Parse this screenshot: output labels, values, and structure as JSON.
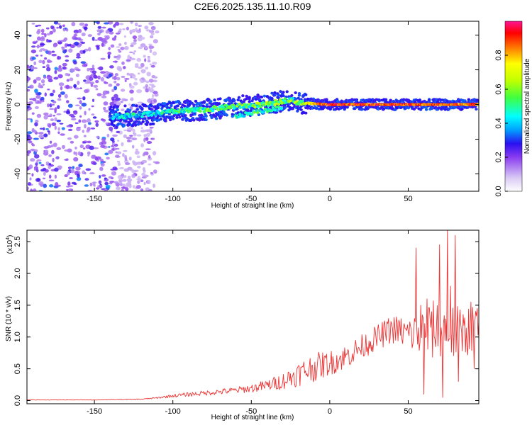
{
  "title": "C2E6.2025.135.11.10.R09",
  "chart_data": [
    {
      "type": "heatmap",
      "xlabel": "Height of straight line (km)",
      "ylabel": "Frequency (Hz)",
      "xlim": [
        -193,
        95
      ],
      "ylim": [
        -50,
        48
      ],
      "xticks": [
        -150,
        -100,
        -50,
        0,
        50
      ],
      "yticks": [
        -40,
        -20,
        0,
        20,
        40
      ],
      "colorbar": {
        "label": "Normalized spectral amplitude",
        "range": [
          0.0,
          1.0
        ],
        "ticks": [
          "0.0",
          "0.2",
          "0.4",
          "0.6",
          "0.8"
        ],
        "colors": [
          "#ffffff",
          "#d8c8f4",
          "#8a3cf0",
          "#2a10f0",
          "#00a0ff",
          "#00ffff",
          "#40ff40",
          "#c0ff00",
          "#ffff00",
          "#ff8000",
          "#ff0000",
          "#ff1493"
        ]
      },
      "ridge": [
        {
          "x": -140,
          "freq": -7,
          "amp": 0.45
        },
        {
          "x": -120,
          "freq": -6,
          "amp": 0.5
        },
        {
          "x": -100,
          "freq": -4,
          "amp": 0.55
        },
        {
          "x": -80,
          "freq": -3,
          "amp": 0.6
        },
        {
          "x": -60,
          "freq": -1,
          "amp": 0.6
        },
        {
          "x": -40,
          "freq": 0,
          "amp": 0.65
        },
        {
          "x": -25,
          "freq": 3,
          "amp": 0.6
        },
        {
          "x": -20,
          "freq": 1,
          "amp": 0.7
        },
        {
          "x": 0,
          "freq": 0,
          "amp": 0.95
        },
        {
          "x": 30,
          "freq": 0,
          "amp": 0.95
        },
        {
          "x": 60,
          "freq": 0,
          "amp": 0.9
        },
        {
          "x": 90,
          "freq": 0,
          "amp": 0.9
        }
      ],
      "secondary_ridge": [
        {
          "x": -60,
          "freq": -7,
          "amp": 0.5
        },
        {
          "x": -45,
          "freq": -4,
          "amp": 0.55
        },
        {
          "x": -30,
          "freq": -2,
          "amp": 0.55
        }
      ],
      "noise_region": {
        "x": [
          -193,
          -120
        ],
        "freq": [
          -50,
          48
        ],
        "amp": 0.25
      }
    },
    {
      "type": "line",
      "xlabel": "Height of straight line (km)",
      "ylabel": "SNR (10 * v/v)",
      "y_multiplier": "(x10",
      "y_multiplier_exp": "4",
      "color": "#ee3333",
      "xlim": [
        -193,
        95
      ],
      "ylim": [
        -0.05,
        2.68
      ],
      "xticks": [
        -150,
        -100,
        -50,
        0,
        50
      ],
      "yticks": [
        "0.0",
        "0.5",
        "1.0",
        "1.5",
        "2.0",
        "2.5"
      ],
      "x": [
        -193,
        -150,
        -120,
        -110,
        -100,
        -90,
        -80,
        -70,
        -60,
        -50,
        -40,
        -30,
        -20,
        -10,
        0,
        10,
        20,
        30,
        40,
        50,
        60,
        70,
        80,
        90,
        95
      ],
      "y": [
        0.01,
        0.01,
        0.02,
        0.04,
        0.07,
        0.09,
        0.11,
        0.13,
        0.15,
        0.18,
        0.22,
        0.28,
        0.38,
        0.48,
        0.55,
        0.65,
        0.8,
        0.95,
        1.08,
        1.0,
        0.95,
        1.05,
        0.95,
        1.05,
        1.1
      ],
      "noise_amplitude": [
        0.005,
        0.005,
        0.01,
        0.02,
        0.04,
        0.05,
        0.06,
        0.07,
        0.08,
        0.1,
        0.14,
        0.2,
        0.3,
        0.35,
        0.3,
        0.3,
        0.3,
        0.3,
        0.35,
        0.4,
        0.7,
        0.75,
        0.7,
        0.6,
        0.6
      ],
      "spikes": [
        {
          "x": 55,
          "y": 2.4
        },
        {
          "x": 58,
          "y": 1.5
        },
        {
          "x": 60,
          "y": 0.1
        },
        {
          "x": 62,
          "y": 1.6
        },
        {
          "x": 65,
          "y": 1.4
        },
        {
          "x": 70,
          "y": 2.45
        },
        {
          "x": 72,
          "y": 0.05
        },
        {
          "x": 75,
          "y": 2.7
        },
        {
          "x": 77,
          "y": 1.8
        },
        {
          "x": 80,
          "y": 2.6
        },
        {
          "x": 82,
          "y": 0.3
        },
        {
          "x": 86,
          "y": 1.3
        },
        {
          "x": 90,
          "y": 1.55
        },
        {
          "x": 92,
          "y": 0.5
        },
        {
          "x": 94,
          "y": 1.45
        }
      ]
    }
  ]
}
